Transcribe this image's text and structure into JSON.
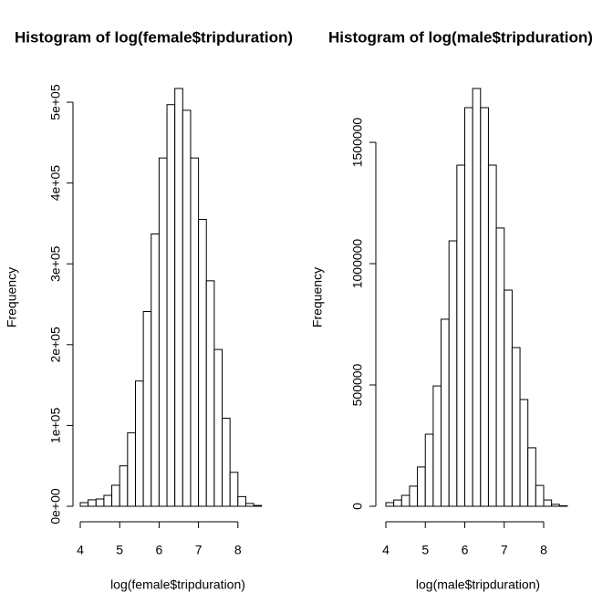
{
  "chart_data": [
    {
      "type": "histogram",
      "title": "Histogram of log(female$tripduration)",
      "xlabel": "log(female$tripduration)",
      "ylabel": "Frequency",
      "bins": [
        4.0,
        4.2,
        4.4,
        4.6,
        4.8,
        5.0,
        5.2,
        5.4,
        5.6,
        5.8,
        6.0,
        6.2,
        6.4,
        6.6,
        6.8,
        7.0,
        7.2,
        7.4,
        7.6,
        7.8,
        8.0,
        8.2,
        8.4,
        8.6
      ],
      "values": [
        4500,
        8000,
        9000,
        13500,
        26000,
        50000,
        91000,
        155000,
        241000,
        337000,
        431000,
        497000,
        517000,
        490000,
        431000,
        355000,
        279000,
        194000,
        109000,
        42000,
        12000,
        3500,
        1000
      ],
      "xlim": [
        4,
        8.6
      ],
      "ylim": [
        0,
        517000
      ],
      "xticks": [
        4,
        5,
        6,
        7,
        8
      ],
      "yticks": [
        {
          "value": 0,
          "label": "0e+00"
        },
        {
          "value": 100000,
          "label": "1e+05"
        },
        {
          "value": 200000,
          "label": "2e+05"
        },
        {
          "value": 300000,
          "label": "3e+05"
        },
        {
          "value": 400000,
          "label": "4e+05"
        },
        {
          "value": 500000,
          "label": "5e+05"
        }
      ],
      "color": "#ffffff"
    },
    {
      "type": "histogram",
      "title": "Histogram of log(male$tripduration)",
      "xlabel": "log(male$tripduration)",
      "ylabel": "Frequency",
      "bins": [
        4.0,
        4.2,
        4.4,
        4.6,
        4.8,
        5.0,
        5.2,
        5.4,
        5.6,
        5.8,
        6.0,
        6.2,
        6.4,
        6.6,
        6.8,
        7.0,
        7.2,
        7.4,
        7.6,
        7.8,
        8.0,
        8.2,
        8.4,
        8.6
      ],
      "values": [
        15000,
        26000,
        45000,
        83000,
        162000,
        297000,
        496000,
        771000,
        1094000,
        1406000,
        1643000,
        1722000,
        1643000,
        1406000,
        1147000,
        891000,
        654000,
        440000,
        241000,
        86000,
        26000,
        8000,
        2000
      ],
      "xlim": [
        4,
        8.6
      ],
      "ylim": [
        0,
        1722000
      ],
      "xticks": [
        4,
        5,
        6,
        7,
        8
      ],
      "yticks": [
        0,
        500000,
        1000000,
        1500000
      ],
      "color": "#ffffff"
    }
  ]
}
